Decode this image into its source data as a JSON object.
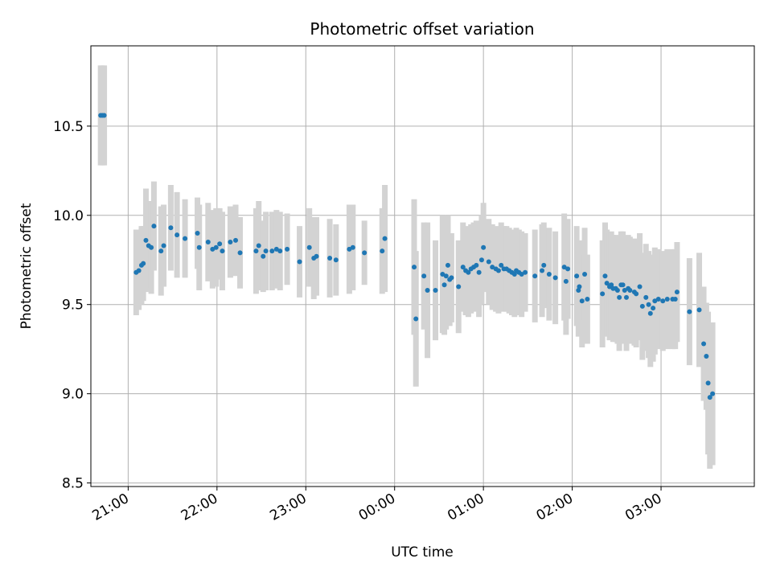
{
  "chart_data": {
    "type": "scatter",
    "title": "Photometric offset variation",
    "xlabel": "UTC time",
    "ylabel": "Photometric offset",
    "x_unit": "UTC time (hours after 20:00)",
    "xlim": [
      0.58,
      8.05
    ],
    "ylim": [
      8.48,
      10.95
    ],
    "grid": true,
    "x_ticks": [
      {
        "value": 1,
        "label": "21:00"
      },
      {
        "value": 2,
        "label": "22:00"
      },
      {
        "value": 3,
        "label": "23:00"
      },
      {
        "value": 4,
        "label": "00:00"
      },
      {
        "value": 5,
        "label": "01:00"
      },
      {
        "value": 6,
        "label": "02:00"
      },
      {
        "value": 7,
        "label": "03:00"
      }
    ],
    "y_ticks": [
      {
        "value": 8.5,
        "label": "8.5"
      },
      {
        "value": 9.0,
        "label": "9.0"
      },
      {
        "value": 9.5,
        "label": "9.5"
      },
      {
        "value": 10.0,
        "label": "10.0"
      },
      {
        "value": 10.5,
        "label": "10.5"
      }
    ],
    "colors": {
      "points": "#1f77b4",
      "error_bars": "#d3d3d3",
      "grid": "#b0b0b0"
    },
    "series": [
      {
        "points": [
          [
            0.69,
            10.56,
            0.28
          ],
          [
            0.71,
            10.56,
            0.28
          ],
          [
            0.73,
            10.56,
            0.28
          ],
          [
            1.09,
            9.68,
            0.24
          ],
          [
            1.12,
            9.69,
            0.22
          ],
          [
            1.15,
            9.72,
            0.22
          ],
          [
            1.17,
            9.73,
            0.21
          ],
          [
            1.2,
            9.86,
            0.29
          ],
          [
            1.23,
            9.83,
            0.24
          ],
          [
            1.26,
            9.82,
            0.26
          ],
          [
            1.29,
            9.94,
            0.25
          ],
          [
            1.37,
            9.8,
            0.25
          ],
          [
            1.4,
            9.83,
            0.23
          ],
          [
            1.48,
            9.93,
            0.24
          ],
          [
            1.55,
            9.89,
            0.24
          ],
          [
            1.64,
            9.87,
            0.22
          ],
          [
            1.78,
            9.9,
            0.2
          ],
          [
            1.8,
            9.82,
            0.24
          ],
          [
            1.9,
            9.85,
            0.22
          ],
          [
            1.95,
            9.81,
            0.22
          ],
          [
            1.99,
            9.82,
            0.22
          ],
          [
            2.03,
            9.84,
            0.2
          ],
          [
            2.06,
            9.8,
            0.22
          ],
          [
            2.15,
            9.85,
            0.2
          ],
          [
            2.21,
            9.86,
            0.2
          ],
          [
            2.26,
            9.79,
            0.2
          ],
          [
            2.44,
            9.8,
            0.24
          ],
          [
            2.47,
            9.83,
            0.25
          ],
          [
            2.52,
            9.77,
            0.2
          ],
          [
            2.55,
            9.8,
            0.22
          ],
          [
            2.62,
            9.8,
            0.22
          ],
          [
            2.67,
            9.81,
            0.22
          ],
          [
            2.71,
            9.8,
            0.22
          ],
          [
            2.79,
            9.81,
            0.2
          ],
          [
            2.93,
            9.74,
            0.2
          ],
          [
            3.04,
            9.82,
            0.22
          ],
          [
            3.09,
            9.76,
            0.23
          ],
          [
            3.12,
            9.77,
            0.22
          ],
          [
            3.27,
            9.76,
            0.22
          ],
          [
            3.34,
            9.75,
            0.2
          ],
          [
            3.49,
            9.81,
            0.25
          ],
          [
            3.53,
            9.82,
            0.24
          ],
          [
            3.66,
            9.79,
            0.18
          ],
          [
            3.86,
            9.8,
            0.24
          ],
          [
            3.89,
            9.87,
            0.3
          ],
          [
            4.22,
            9.71,
            0.38
          ],
          [
            4.24,
            9.42,
            0.38
          ],
          [
            4.33,
            9.66,
            0.3
          ],
          [
            4.37,
            9.58,
            0.38
          ],
          [
            4.46,
            9.58,
            0.28
          ],
          [
            4.54,
            9.67,
            0.33
          ],
          [
            4.56,
            9.61,
            0.28
          ],
          [
            4.58,
            9.66,
            0.3
          ],
          [
            4.6,
            9.72,
            0.28
          ],
          [
            4.62,
            9.64,
            0.26
          ],
          [
            4.64,
            9.65,
            0.25
          ],
          [
            4.72,
            9.6,
            0.26
          ],
          [
            4.77,
            9.71,
            0.25
          ],
          [
            4.8,
            9.69,
            0.25
          ],
          [
            4.83,
            9.68,
            0.25
          ],
          [
            4.86,
            9.7,
            0.25
          ],
          [
            4.89,
            9.71,
            0.25
          ],
          [
            4.92,
            9.72,
            0.25
          ],
          [
            4.95,
            9.68,
            0.25
          ],
          [
            4.98,
            9.75,
            0.25
          ],
          [
            5.0,
            9.82,
            0.25
          ],
          [
            5.06,
            9.74,
            0.24
          ],
          [
            5.1,
            9.71,
            0.24
          ],
          [
            5.14,
            9.7,
            0.24
          ],
          [
            5.17,
            9.69,
            0.24
          ],
          [
            5.2,
            9.72,
            0.24
          ],
          [
            5.23,
            9.7,
            0.24
          ],
          [
            5.26,
            9.7,
            0.24
          ],
          [
            5.29,
            9.69,
            0.24
          ],
          [
            5.32,
            9.68,
            0.24
          ],
          [
            5.35,
            9.67,
            0.24
          ],
          [
            5.37,
            9.69,
            0.24
          ],
          [
            5.4,
            9.68,
            0.24
          ],
          [
            5.43,
            9.67,
            0.24
          ],
          [
            5.47,
            9.68,
            0.22
          ],
          [
            5.58,
            9.66,
            0.26
          ],
          [
            5.66,
            9.69,
            0.26
          ],
          [
            5.68,
            9.72,
            0.24
          ],
          [
            5.74,
            9.67,
            0.26
          ],
          [
            5.81,
            9.65,
            0.26
          ],
          [
            5.91,
            9.71,
            0.3
          ],
          [
            5.93,
            9.63,
            0.3
          ],
          [
            5.95,
            9.7,
            0.28
          ],
          [
            6.05,
            9.66,
            0.28
          ],
          [
            6.07,
            9.58,
            0.26
          ],
          [
            6.08,
            9.6,
            0.26
          ],
          [
            6.11,
            9.52,
            0.26
          ],
          [
            6.14,
            9.67,
            0.26
          ],
          [
            6.17,
            9.53,
            0.25
          ],
          [
            6.34,
            9.56,
            0.3
          ],
          [
            6.37,
            9.66,
            0.3
          ],
          [
            6.39,
            9.62,
            0.3
          ],
          [
            6.42,
            9.6,
            0.3
          ],
          [
            6.44,
            9.61,
            0.3
          ],
          [
            6.46,
            9.59,
            0.3
          ],
          [
            6.49,
            9.59,
            0.3
          ],
          [
            6.51,
            9.58,
            0.3
          ],
          [
            6.53,
            9.54,
            0.3
          ],
          [
            6.55,
            9.61,
            0.3
          ],
          [
            6.57,
            9.61,
            0.3
          ],
          [
            6.59,
            9.58,
            0.3
          ],
          [
            6.61,
            9.54,
            0.3
          ],
          [
            6.63,
            9.59,
            0.3
          ],
          [
            6.65,
            9.58,
            0.3
          ],
          [
            6.7,
            9.57,
            0.3
          ],
          [
            6.72,
            9.56,
            0.3
          ],
          [
            6.76,
            9.6,
            0.3
          ],
          [
            6.79,
            9.49,
            0.3
          ],
          [
            6.83,
            9.54,
            0.3
          ],
          [
            6.86,
            9.5,
            0.3
          ],
          [
            6.88,
            9.45,
            0.3
          ],
          [
            6.91,
            9.48,
            0.3
          ],
          [
            6.93,
            9.52,
            0.3
          ],
          [
            6.97,
            9.53,
            0.28
          ],
          [
            7.02,
            9.52,
            0.28
          ],
          [
            7.07,
            9.53,
            0.28
          ],
          [
            7.13,
            9.53,
            0.28
          ],
          [
            7.16,
            9.53,
            0.28
          ],
          [
            7.18,
            9.57,
            0.28
          ],
          [
            7.32,
            9.46,
            0.3
          ],
          [
            7.43,
            9.47,
            0.32
          ],
          [
            7.48,
            9.28,
            0.32
          ],
          [
            7.51,
            9.21,
            0.3
          ],
          [
            7.53,
            9.06,
            0.4
          ],
          [
            7.55,
            8.98,
            0.4
          ],
          [
            7.58,
            9.0,
            0.4
          ]
        ]
      }
    ]
  }
}
